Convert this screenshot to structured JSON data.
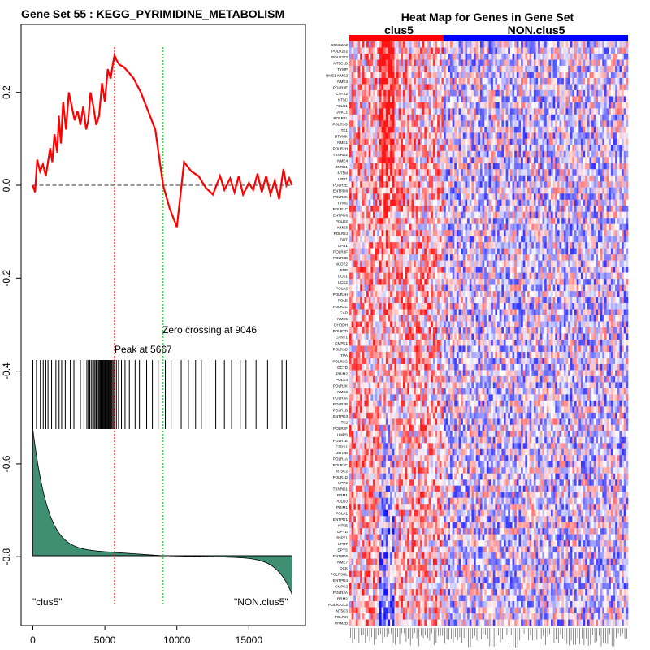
{
  "chart_data": [
    {
      "type": "line",
      "title": "Gene Set  55 : KEGG_PYRIMIDINE_METABOLISM",
      "xlabel": "",
      "ylabel": "",
      "xlim": [
        0,
        18000
      ],
      "ylim": [
        -0.9,
        0.3
      ],
      "x_ticks": [
        0,
        5000,
        10000,
        15000
      ],
      "x_tick_labels": [
        "0",
        "5000",
        "10000",
        "15000"
      ],
      "y_ticks": [
        0.2,
        0.0,
        -0.2,
        -0.4,
        -0.6,
        -0.8
      ],
      "y_tick_labels": [
        "0.2",
        "0.0",
        "-0.2",
        "-0.4",
        "-0.6",
        "-0.8"
      ],
      "series": [
        {
          "name": "Running enrichment score",
          "color": "#ff0000",
          "x": [
            0,
            150,
            300,
            500,
            700,
            900,
            1200,
            1350,
            1500,
            1700,
            1800,
            1950,
            2100,
            2300,
            2400,
            2500,
            2700,
            2900,
            3100,
            3300,
            3500,
            3700,
            3850,
            4000,
            4200,
            4400,
            4600,
            4800,
            5000,
            5200,
            5400,
            5550,
            5667,
            5800,
            6000,
            6300,
            6600,
            7000,
            7500,
            8000,
            8500,
            9046,
            9500,
            10000,
            10500,
            11000,
            11500,
            12000,
            12500,
            13000,
            13300,
            13700,
            14000,
            14300,
            14600,
            15000,
            15300,
            15600,
            15900,
            16200,
            16500,
            16800,
            17100,
            17400,
            17600,
            17800,
            18000
          ],
          "values": [
            0.0,
            -0.015,
            0.055,
            0.03,
            0.045,
            0.02,
            0.08,
            0.05,
            0.11,
            0.07,
            0.15,
            0.09,
            0.18,
            0.12,
            0.16,
            0.2,
            0.17,
            0.14,
            0.16,
            0.13,
            0.17,
            0.12,
            0.14,
            0.2,
            0.17,
            0.13,
            0.15,
            0.22,
            0.18,
            0.25,
            0.23,
            0.26,
            0.28,
            0.27,
            0.26,
            0.255,
            0.245,
            0.23,
            0.2,
            0.16,
            0.12,
            0.0,
            -0.05,
            -0.09,
            0.05,
            0.03,
            0.02,
            -0.005,
            -0.02,
            0.02,
            -0.01,
            0.015,
            -0.015,
            0.02,
            -0.02,
            0.005,
            -0.01,
            0.025,
            -0.015,
            0.02,
            -0.02,
            0.01,
            -0.03,
            0.035,
            0.0,
            0.015,
            0.0
          ]
        }
      ],
      "peak_x": 5667,
      "zero_crossing_x": 9046,
      "annotations": [
        "Peak at 5667",
        "Zero crossing at 9046"
      ],
      "group_labels": [
        "\"clus5\"",
        "\"NON.clus5\""
      ],
      "hit_positions": [
        0,
        250,
        520,
        720,
        900,
        1050,
        1300,
        1600,
        1820,
        2000,
        2250,
        2600,
        2850,
        3300,
        3550,
        3750,
        3850,
        3950,
        4050,
        4150,
        4250,
        4320,
        4400,
        4480,
        4560,
        4620,
        4680,
        4740,
        4800,
        4850,
        4900,
        4950,
        5000,
        5050,
        5100,
        5150,
        5200,
        5250,
        5300,
        5350,
        5420,
        5480,
        5550,
        5620,
        5700,
        5800,
        5950,
        6150,
        6400,
        6700,
        7100,
        7400,
        7900,
        8300,
        8700,
        9200,
        9600,
        10300,
        10800,
        11300,
        11700,
        12300,
        12700,
        13300,
        13800,
        14400,
        14800,
        15500,
        16300,
        17300,
        17600
      ],
      "metric_shape": "ranked list metric decreasing from 0.5 at rank 0 to -0.5 at rank 18000, crossing zero near 9046"
    },
    {
      "type": "heatmap",
      "title": "Heat Map for Genes in Gene Set",
      "column_groups": [
        {
          "name": "clus5",
          "color": "#ff0000"
        },
        {
          "name": "NON.clus5",
          "color": "#0000ff"
        }
      ],
      "color_scale": [
        "#0000ff",
        "#ffffff",
        "#ff0000"
      ],
      "rows": [
        "CSNK2A2",
        "POLR2J2",
        "POLR2J3",
        "NT5C1B",
        "TYMP",
        "NME1-NME2",
        "NME3",
        "POLR3E",
        "CTPS2",
        "NT5C",
        "POLD1",
        "UCKL1",
        "POLR2L",
        "POLR3G",
        "TK1",
        "DTYMK",
        "NME1",
        "POLR2H",
        "TXNRD2",
        "NME4",
        "ZNRD1",
        "NT5M",
        "UPP1",
        "POLR2E",
        "ENTPD8",
        "POLR3K",
        "TYMS",
        "POLR1C",
        "ENTPD6",
        "POLD2",
        "NME6",
        "POLR2J",
        "DUT",
        "UPB1",
        "POLR3F",
        "POLR3B",
        "NUDT2",
        "PNP",
        "UCK1",
        "UCK2",
        "POLA2",
        "POLR3H",
        "POLE",
        "POLR2C",
        "CAD",
        "NME5",
        "DHODH",
        "POLR2D",
        "CANT1",
        "CMPK1",
        "POLR3D",
        "ITPA",
        "POLR2G",
        "DCTD",
        "PRIM2",
        "POLE4",
        "POLR2K",
        "NME2",
        "POLR3A",
        "POLR2B",
        "POLR1B",
        "ENTPD3",
        "TK2",
        "POLR2F",
        "UMPS",
        "POLR1E",
        "CTPS1",
        "UCK2B",
        "POLR1A",
        "POLR3C",
        "NT5C2",
        "POLR1D",
        "UPP2",
        "TXNRD1",
        "RRM1",
        "POLD3",
        "PRIM1",
        "POLA1",
        "ENTPD1",
        "NT5E",
        "DPYD",
        "PNPT1",
        "UPRT",
        "DPYS",
        "ENTPD5",
        "NME7",
        "DCK",
        "POLR3GL",
        "ENTPD4",
        "CMPK2",
        "POLR2A",
        "RRM2",
        "POLR3GL2",
        "NT5C3",
        "POLR2I",
        "RRM2B"
      ],
      "n_columns": 130,
      "n_clus5_columns": 44
    }
  ]
}
